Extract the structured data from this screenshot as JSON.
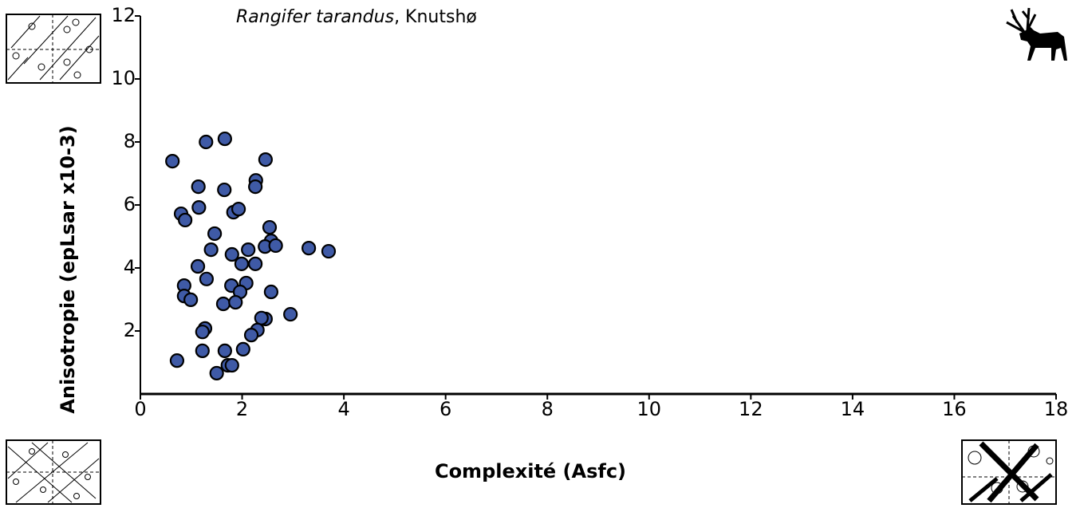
{
  "chart_data": {
    "type": "scatter",
    "title": [
      "Rangifer tarandus",
      ", Knutshø"
    ],
    "x_label": "Complexité (Asfc)",
    "y_label": "Anisotropie (epLsar x10-3)",
    "xlim": [
      0,
      18
    ],
    "ylim": [
      0,
      12
    ],
    "xticks": [
      0,
      2,
      4,
      6,
      8,
      10,
      12,
      14,
      16,
      18
    ],
    "yticks": [
      2,
      4,
      6,
      8,
      10,
      12
    ],
    "grid": false,
    "series": [
      {
        "color": "#3f5aa6",
        "x": [
          0.63,
          1.29,
          1.66,
          2.46,
          0.72,
          1.14,
          1.65,
          2.27,
          2.26,
          0.8,
          1.15,
          0.88,
          1.83,
          1.93,
          1.46,
          2.54,
          1.39,
          1.8,
          2.12,
          2.57,
          2.45,
          2.66,
          3.31,
          3.7,
          1.13,
          1.99,
          2.26,
          0.86,
          1.3,
          1.79,
          2.08,
          0.86,
          0.99,
          1.96,
          2.57,
          1.63,
          1.87,
          2.95,
          2.46,
          2.38,
          1.27,
          1.22,
          2.3,
          2.18,
          1.22,
          1.66,
          2.02,
          1.72,
          1.8,
          1.5
        ],
        "values": [
          7.39,
          8.0,
          8.1,
          7.44,
          1.06,
          6.58,
          6.48,
          6.78,
          6.58,
          5.72,
          5.92,
          5.52,
          5.77,
          5.87,
          5.09,
          5.29,
          4.58,
          4.43,
          4.58,
          4.86,
          4.68,
          4.71,
          4.63,
          4.53,
          4.05,
          4.13,
          4.13,
          3.44,
          3.65,
          3.44,
          3.52,
          3.11,
          2.99,
          3.24,
          3.24,
          2.86,
          2.91,
          2.53,
          2.38,
          2.41,
          2.08,
          1.97,
          2.03,
          1.87,
          1.37,
          1.37,
          1.42,
          0.91,
          0.91,
          0.66
        ]
      }
    ]
  }
}
